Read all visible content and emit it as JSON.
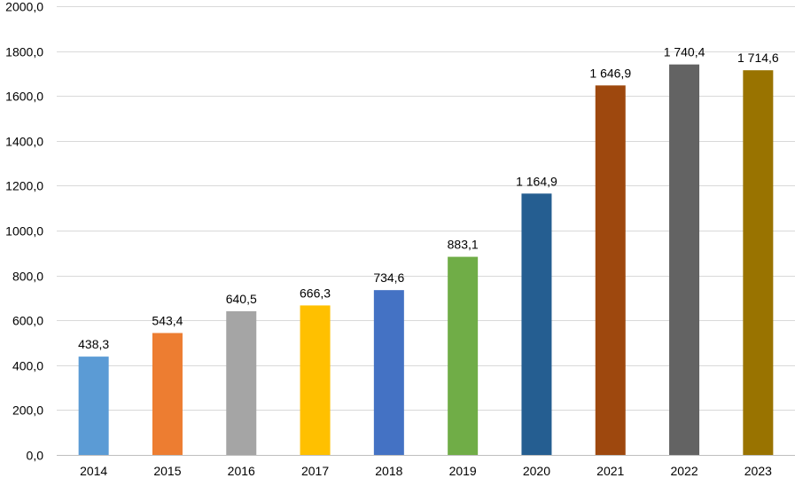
{
  "chart_data": {
    "type": "bar",
    "title": "",
    "xlabel": "",
    "ylabel": "",
    "categories": [
      "2014",
      "2015",
      "2016",
      "2017",
      "2018",
      "2019",
      "2020",
      "2021",
      "2022",
      "2023"
    ],
    "values": [
      438.3,
      543.4,
      640.5,
      666.3,
      734.6,
      883.1,
      1164.9,
      1646.9,
      1740.4,
      1714.6
    ],
    "value_labels": [
      "438,3",
      "543,4",
      "640,5",
      "666,3",
      "734,6",
      "883,1",
      "1 164,9",
      "1 646,9",
      "1 740,4",
      "1 714,6"
    ],
    "colors": [
      "#5b9bd5",
      "#ed7d31",
      "#a5a5a5",
      "#ffc000",
      "#4472c4",
      "#70ad47",
      "#255e91",
      "#9e480e",
      "#636363",
      "#997300"
    ],
    "ylim": [
      0,
      2000
    ],
    "yticks": [
      0,
      200,
      400,
      600,
      800,
      1000,
      1200,
      1400,
      1600,
      1800,
      2000
    ],
    "ytick_labels": [
      "0,0",
      "200,0",
      "400,0",
      "600,0",
      "800,0",
      "1000,0",
      "1200,0",
      "1400,0",
      "1600,0",
      "1800,0",
      "2000,0"
    ],
    "grid": true,
    "legend": "none"
  }
}
